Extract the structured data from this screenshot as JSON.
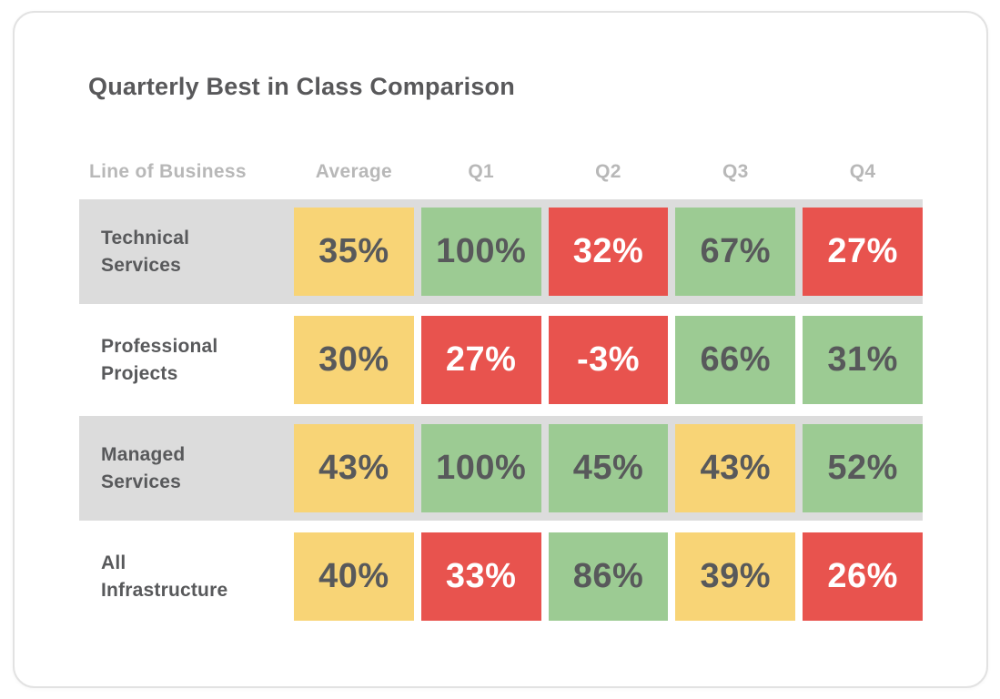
{
  "card": {
    "title": "Quarterly Best in Class Comparison"
  },
  "table": {
    "columns": [
      "Line of Business",
      "Average",
      "Q1",
      "Q2",
      "Q3",
      "Q4"
    ],
    "rows": [
      {
        "label": "Technical Services",
        "striped": true,
        "cells": [
          {
            "value": "35%",
            "status": "warn"
          },
          {
            "value": "100%",
            "status": "good"
          },
          {
            "value": "32%",
            "status": "bad"
          },
          {
            "value": "67%",
            "status": "good"
          },
          {
            "value": "27%",
            "status": "bad"
          }
        ]
      },
      {
        "label": "Professional Projects",
        "striped": false,
        "cells": [
          {
            "value": "30%",
            "status": "warn"
          },
          {
            "value": "27%",
            "status": "bad"
          },
          {
            "value": "-3%",
            "status": "bad"
          },
          {
            "value": "66%",
            "status": "good"
          },
          {
            "value": "31%",
            "status": "good"
          }
        ]
      },
      {
        "label": "Managed Services",
        "striped": true,
        "cells": [
          {
            "value": "43%",
            "status": "warn"
          },
          {
            "value": "100%",
            "status": "good"
          },
          {
            "value": "45%",
            "status": "good"
          },
          {
            "value": "43%",
            "status": "warn"
          },
          {
            "value": "52%",
            "status": "good"
          }
        ]
      },
      {
        "label": "All Infrastructure",
        "striped": false,
        "cells": [
          {
            "value": "40%",
            "status": "warn"
          },
          {
            "value": "33%",
            "status": "bad"
          },
          {
            "value": "86%",
            "status": "good"
          },
          {
            "value": "39%",
            "status": "warn"
          },
          {
            "value": "26%",
            "status": "bad"
          }
        ]
      }
    ]
  },
  "colors": {
    "good": "#9ccb93",
    "warn": "#f8d476",
    "bad": "#e8534e",
    "bad_text": "#ffffff",
    "value_text": "#58595b",
    "stripe_bg": "#dcdcdc",
    "header_text": "#b8b8b8",
    "title_text": "#58585a",
    "card_border": "#e2e2e2"
  },
  "chart_data": {
    "type": "heatmap",
    "title": "Quarterly Best in Class Comparison",
    "row_labels": [
      "Technical Services",
      "Professional Projects",
      "Managed Services",
      "All Infrastructure"
    ],
    "col_labels": [
      "Average",
      "Q1",
      "Q2",
      "Q3",
      "Q4"
    ],
    "values_pct": [
      [
        35,
        100,
        32,
        67,
        27
      ],
      [
        30,
        27,
        -3,
        66,
        31
      ],
      [
        43,
        100,
        45,
        43,
        52
      ],
      [
        40,
        33,
        86,
        39,
        26
      ]
    ],
    "cell_status": [
      [
        "warn",
        "good",
        "bad",
        "good",
        "bad"
      ],
      [
        "warn",
        "bad",
        "bad",
        "good",
        "good"
      ],
      [
        "warn",
        "good",
        "good",
        "warn",
        "good"
      ],
      [
        "warn",
        "bad",
        "good",
        "warn",
        "bad"
      ]
    ],
    "legend": "off",
    "grid": "off"
  }
}
